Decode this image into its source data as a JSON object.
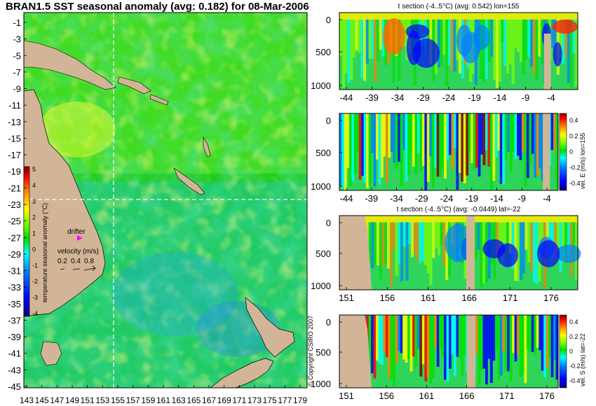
{
  "title": "BRAN1.5 SST seasonal anomaly (avg: 0.182) for 08-Mar-2006",
  "copyright": "© Copyright CSIRO 2007",
  "colors": {
    "land": "#d2b596",
    "scale": [
      "#00007f",
      "#0000ff",
      "#0080ff",
      "#00ffff",
      "#00e000",
      "#80ff00",
      "#ffff00",
      "#ff8000",
      "#ff0000",
      "#7f0000"
    ]
  },
  "chart_data": [
    {
      "type": "heatmap",
      "name": "map",
      "title": "BRAN1.5 SST seasonal anomaly (avg: 0.182) for 08-Mar-2006",
      "y_ticks": [
        "-1",
        "-3",
        "-5",
        "-7",
        "-9",
        "-11",
        "-13",
        "-15",
        "-17",
        "-19",
        "-21",
        "-23",
        "-25",
        "-27",
        "-29",
        "-31",
        "-33",
        "-35",
        "-37",
        "-39",
        "-41",
        "-43",
        "-45"
      ],
      "x_ticks": [
        "143",
        "145",
        "147",
        "149",
        "151",
        "153",
        "155",
        "157",
        "159",
        "161",
        "163",
        "165",
        "167",
        "169",
        "171",
        "173",
        "175",
        "177",
        "179"
      ],
      "xlim": [
        143,
        180
      ],
      "ylim": [
        -45,
        0
      ],
      "section_lon": 155,
      "section_lat": -22,
      "colorbar": {
        "label": "temperature seasonal anomaly (°C)",
        "ticks": [
          "5",
          "4",
          "3",
          "2",
          "1",
          "0",
          "-1",
          "-2",
          "-3",
          "-4"
        ],
        "range": [
          -4,
          5
        ]
      },
      "drifter_label": "drifter",
      "velocity_legend": {
        "title": "velocity (m/s)",
        "values": [
          "0.2",
          "0.4",
          "0.8"
        ]
      }
    },
    {
      "type": "heatmap",
      "name": "t section lon",
      "title": "t section (-4..5°C) (avg: 0.542) lon=155",
      "x_ticks": [
        "-44",
        "-39",
        "-34",
        "-29",
        "-24",
        "-19",
        "-14",
        "-9",
        "-4"
      ],
      "y_ticks": [
        "0",
        "500",
        "1000"
      ],
      "ylim": [
        0,
        1050
      ]
    },
    {
      "type": "heatmap",
      "name": "vel E section",
      "title": "",
      "x_ticks": [
        "-44",
        "-39",
        "-34",
        "-29",
        "-24",
        "-19",
        "-14",
        "-9",
        "-4"
      ],
      "y_ticks": [
        "0",
        "500",
        "1000"
      ],
      "ylim": [
        0,
        1050
      ],
      "colorbar": {
        "label": "vel. E (m/s) lon=155",
        "ticks": [
          "0.4",
          "0.2",
          "0",
          "-0.2",
          "-0.4"
        ]
      }
    },
    {
      "type": "heatmap",
      "name": "t section lat",
      "title": "t section (-4..5°C) (avg: -0.0449) lat=-22",
      "x_ticks": [
        "151",
        "156",
        "161",
        "166",
        "171",
        "176"
      ],
      "y_ticks": [
        "0",
        "500",
        "1000"
      ],
      "ylim": [
        0,
        1050
      ]
    },
    {
      "type": "heatmap",
      "name": "vel S section",
      "title": "",
      "x_ticks": [
        "151",
        "156",
        "161",
        "166",
        "171",
        "176"
      ],
      "y_ticks": [
        "0",
        "500",
        "1000"
      ],
      "ylim": [
        0,
        1050
      ],
      "colorbar": {
        "label": "vel. S (m/s) lat=-22",
        "ticks": [
          "0.4",
          "0.2",
          "0",
          "-0.2",
          "-0.4"
        ]
      }
    }
  ]
}
